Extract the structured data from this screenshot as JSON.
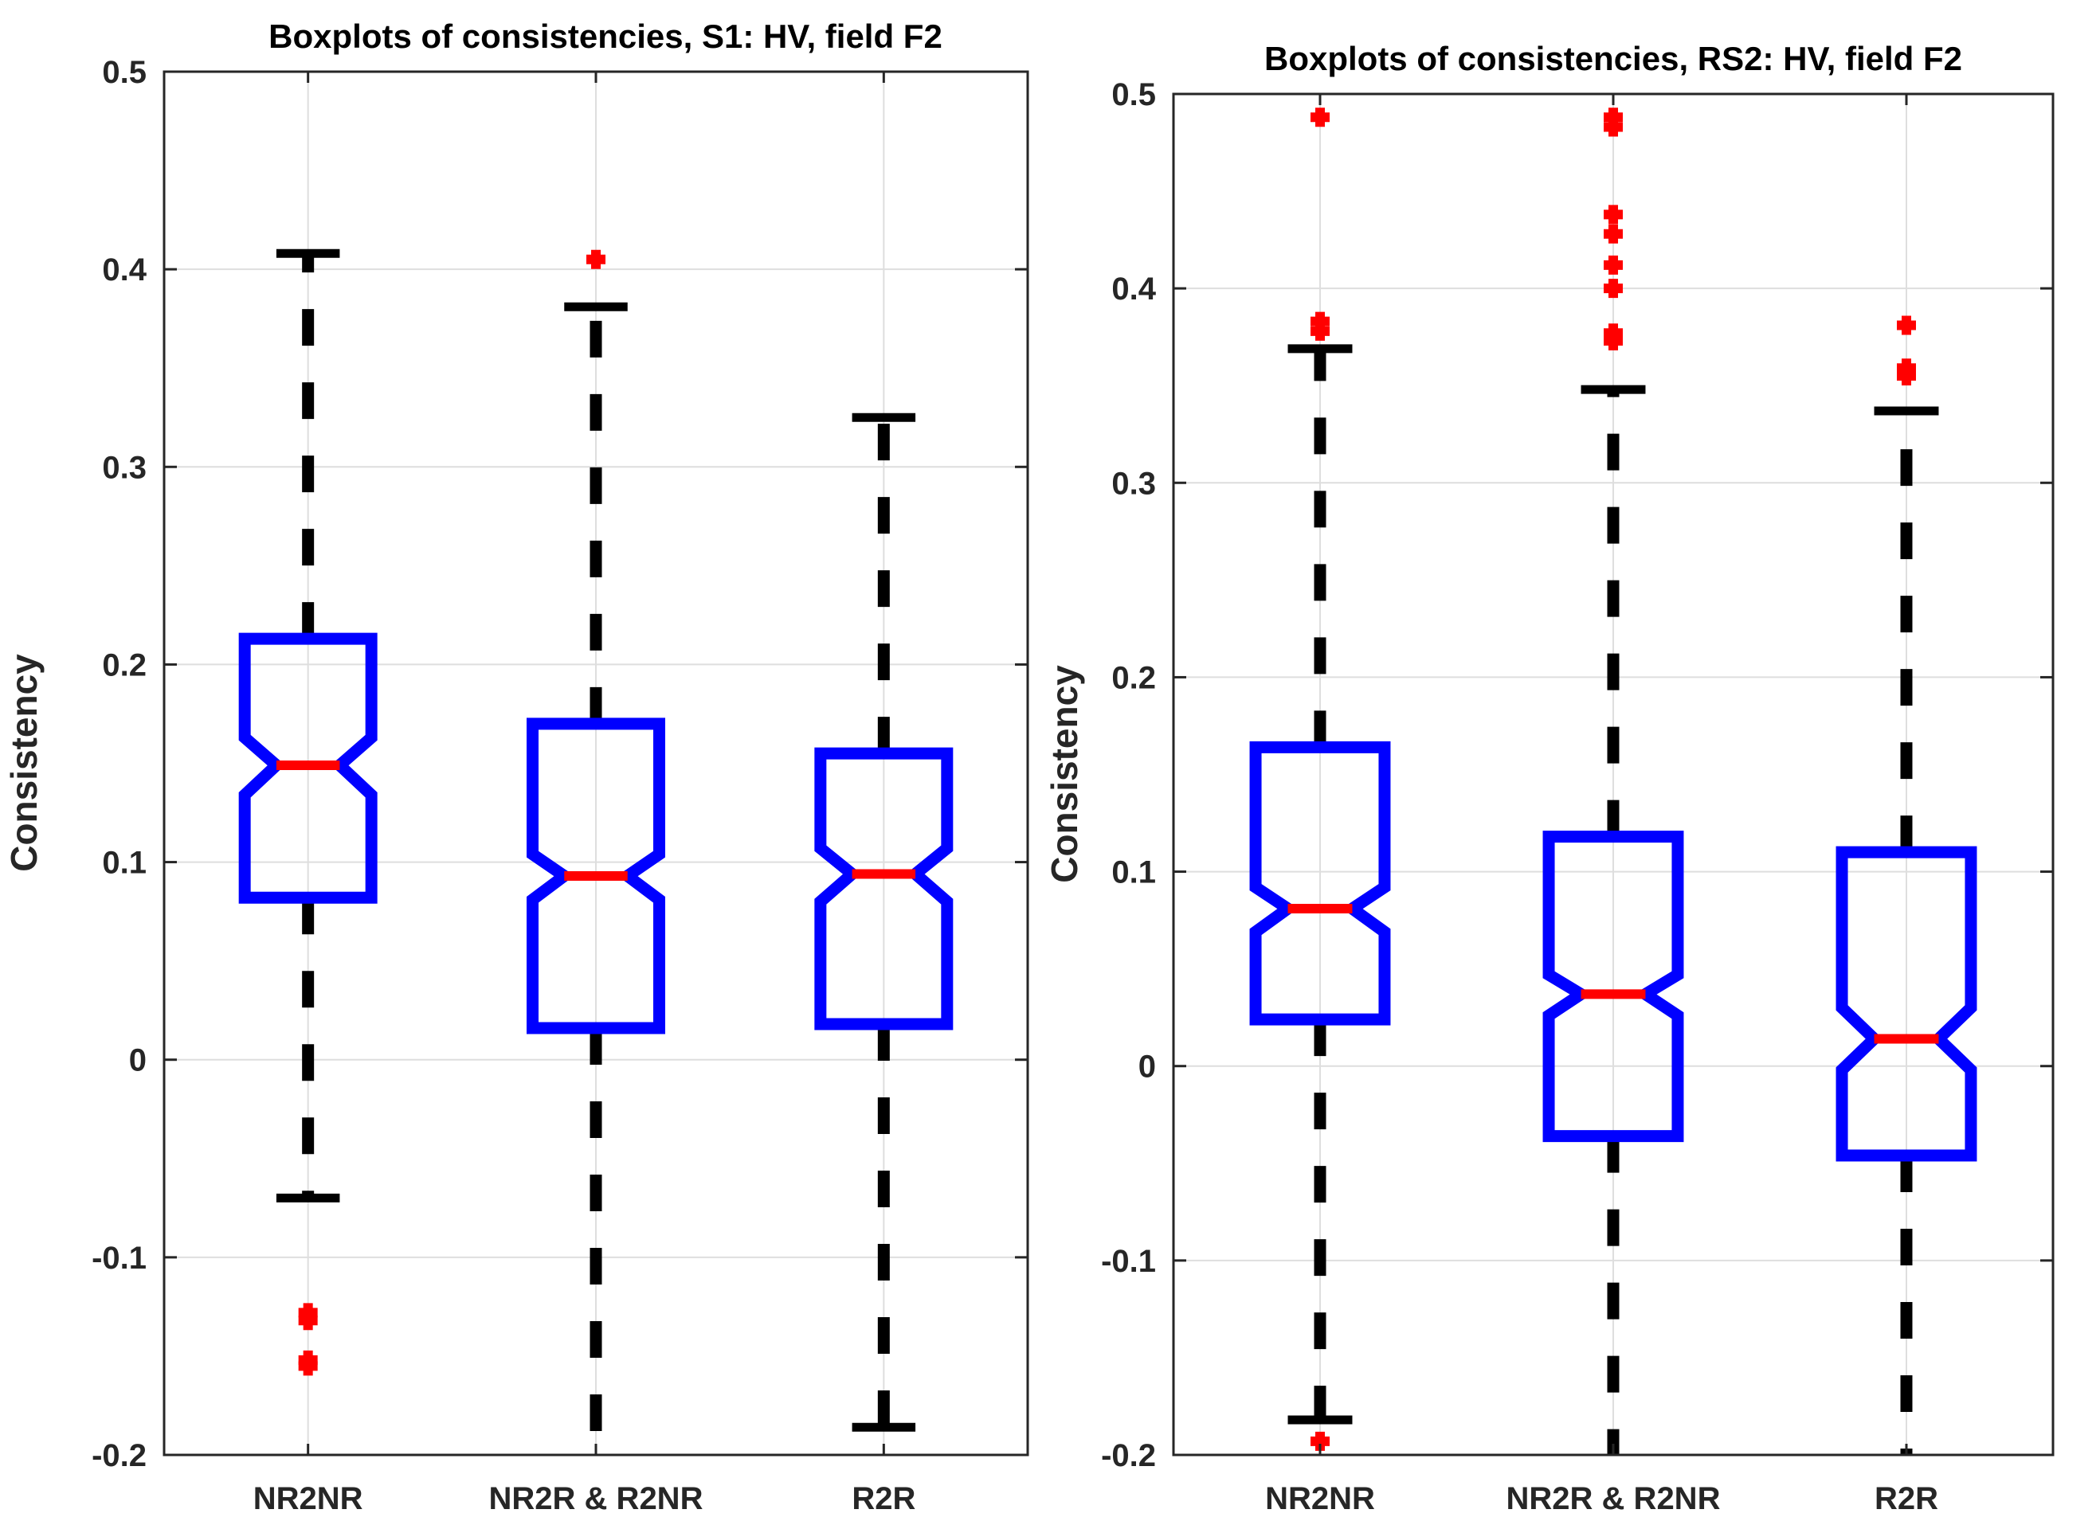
{
  "chart_data": [
    {
      "type": "boxplot",
      "title": "Boxplots of consistencies, S1: HV, field F2",
      "xlabel": "",
      "ylabel": "Consistency",
      "ylim": [
        -0.2,
        0.5
      ],
      "yticks": [
        -0.2,
        -0.1,
        0,
        0.1,
        0.2,
        0.3,
        0.4,
        0.5
      ],
      "ytick_labels": [
        "-0.2",
        "-0.1",
        "0",
        "0.1",
        "0.2",
        "0.3",
        "0.4",
        "0.5"
      ],
      "grid": true,
      "notched": true,
      "colors": {
        "box": "#0000ff",
        "median": "#ff0000",
        "whisker": "#000000",
        "outlier": "#ff0000",
        "grid": "#dedede",
        "axis": "#262626"
      },
      "groups": [
        {
          "label": "NR2NR",
          "q1": 0.082,
          "median": 0.149,
          "q3": 0.213,
          "notch_low": 0.134,
          "notch_high": 0.163,
          "whisker_low": -0.07,
          "whisker_high": 0.408,
          "outliers": [
            -0.128,
            -0.132,
            -0.152,
            -0.155
          ]
        },
        {
          "label": "NR2R & R2NR",
          "q1": 0.016,
          "median": 0.093,
          "q3": 0.17,
          "notch_low": 0.081,
          "notch_high": 0.104,
          "whisker_low": -0.203,
          "whisker_high": 0.381,
          "outliers": [
            0.405
          ]
        },
        {
          "label": "R2R",
          "q1": 0.018,
          "median": 0.094,
          "q3": 0.155,
          "notch_low": 0.08,
          "notch_high": 0.107,
          "whisker_low": -0.186,
          "whisker_high": 0.325,
          "outliers": []
        }
      ]
    },
    {
      "type": "boxplot",
      "title": "Boxplots of consistencies, RS2: HV, field F2",
      "xlabel": "",
      "ylabel": "Consistency",
      "ylim": [
        -0.2,
        0.5
      ],
      "yticks": [
        -0.2,
        -0.1,
        0,
        0.1,
        0.2,
        0.3,
        0.4,
        0.5
      ],
      "ytick_labels": [
        "-0.2",
        "-0.1",
        "0",
        "0.1",
        "0.2",
        "0.3",
        "0.4",
        "0.5"
      ],
      "grid": true,
      "notched": true,
      "colors": {
        "box": "#0000ff",
        "median": "#ff0000",
        "whisker": "#000000",
        "outlier": "#ff0000",
        "grid": "#dedede",
        "axis": "#262626"
      },
      "groups": [
        {
          "label": "NR2NR",
          "q1": 0.024,
          "median": 0.081,
          "q3": 0.164,
          "notch_low": 0.069,
          "notch_high": 0.092,
          "whisker_low": -0.182,
          "whisker_high": 0.369,
          "outliers": [
            0.488,
            0.378,
            0.383,
            -0.193
          ]
        },
        {
          "label": "NR2R & R2NR",
          "q1": -0.036,
          "median": 0.037,
          "q3": 0.118,
          "notch_low": 0.026,
          "notch_high": 0.047,
          "whisker_low": -0.203,
          "whisker_high": 0.348,
          "outliers": [
            0.483,
            0.488,
            0.438,
            0.428,
            0.412,
            0.4,
            0.377,
            0.373
          ]
        },
        {
          "label": "R2R",
          "q1": -0.046,
          "median": 0.014,
          "q3": 0.11,
          "notch_low": -0.002,
          "notch_high": 0.03,
          "whisker_low": -0.203,
          "whisker_high": 0.337,
          "outliers": [
            0.381,
            0.359,
            0.355
          ]
        }
      ]
    }
  ]
}
